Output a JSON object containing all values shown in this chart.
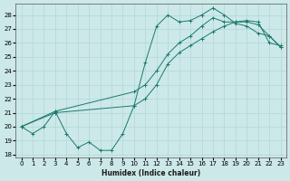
{
  "xlabel": "Humidex (Indice chaleur)",
  "ylabel": "",
  "background_color": "#cce8e8",
  "grid_color": "#b0d8d8",
  "line_color": "#1a7a6e",
  "xlim": [
    -0.5,
    23.5
  ],
  "ylim": [
    17.8,
    28.8
  ],
  "yticks": [
    18,
    19,
    20,
    21,
    22,
    23,
    24,
    25,
    26,
    27,
    28
  ],
  "xticks": [
    0,
    1,
    2,
    3,
    4,
    5,
    6,
    7,
    8,
    9,
    10,
    11,
    12,
    13,
    14,
    15,
    16,
    17,
    18,
    19,
    20,
    21,
    22,
    23
  ],
  "line1_x": [
    0,
    1,
    2,
    3,
    4,
    5,
    6,
    7,
    8,
    9,
    10,
    11,
    12,
    13,
    14,
    15,
    16,
    17,
    18,
    19,
    20,
    21,
    22,
    23
  ],
  "line1_y": [
    20.0,
    19.5,
    20.0,
    21.1,
    19.5,
    18.5,
    18.9,
    18.3,
    18.3,
    19.5,
    21.5,
    24.6,
    27.2,
    28.0,
    27.5,
    27.6,
    28.0,
    28.5,
    28.0,
    27.4,
    27.2,
    26.7,
    26.5,
    25.7
  ],
  "line2_x": [
    0,
    3,
    10,
    11,
    12,
    13,
    14,
    15,
    16,
    17,
    18,
    19,
    20,
    21,
    22,
    23
  ],
  "line2_y": [
    20.0,
    21.0,
    21.5,
    22.0,
    23.0,
    24.5,
    25.3,
    25.8,
    26.3,
    26.8,
    27.2,
    27.5,
    27.6,
    27.5,
    26.0,
    25.8
  ],
  "line3_x": [
    0,
    3,
    10,
    11,
    12,
    13,
    14,
    15,
    16,
    17,
    18,
    19,
    20,
    21,
    22,
    23
  ],
  "line3_y": [
    20.0,
    21.1,
    22.5,
    23.0,
    24.0,
    25.2,
    26.0,
    26.5,
    27.2,
    27.8,
    27.5,
    27.5,
    27.5,
    27.3,
    26.5,
    25.7
  ]
}
